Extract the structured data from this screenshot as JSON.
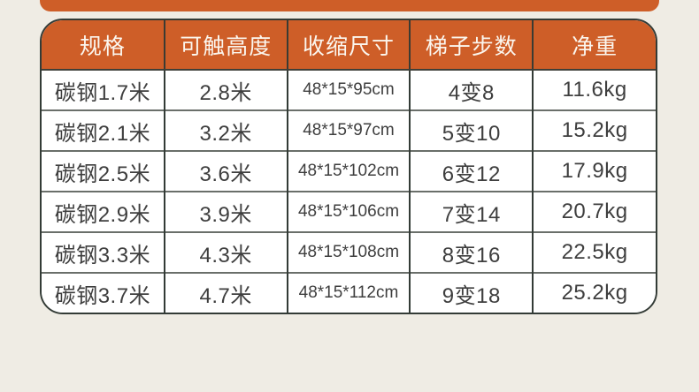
{
  "colors": {
    "page_background": "#EFECE4",
    "accent_orange": "#CE5E28",
    "header_text": "#FBF6EE",
    "cell_background": "#FFFFFF",
    "cell_text": "#3E3E3E",
    "outer_border": "#333B36",
    "row_divider": "#6A6F6A"
  },
  "table": {
    "columns": [
      "规格",
      "可触高度",
      "收缩尺寸",
      "梯子步数",
      "净重"
    ],
    "rows": [
      [
        "碳钢1.7米",
        "2.8米",
        "48*15*95cm",
        "4变8",
        "11.6kg"
      ],
      [
        "碳钢2.1米",
        "3.2米",
        "48*15*97cm",
        "5变10",
        "15.2kg"
      ],
      [
        "碳钢2.5米",
        "3.6米",
        "48*15*102cm",
        "6变12",
        "17.9kg"
      ],
      [
        "碳钢2.9米",
        "3.9米",
        "48*15*106cm",
        "7变14",
        "20.7kg"
      ],
      [
        "碳钢3.3米",
        "4.3米",
        "48*15*108cm",
        "8变16",
        "22.5kg"
      ],
      [
        "碳钢3.7米",
        "4.7米",
        "48*15*112cm",
        "9变18",
        "25.2kg"
      ]
    ]
  }
}
